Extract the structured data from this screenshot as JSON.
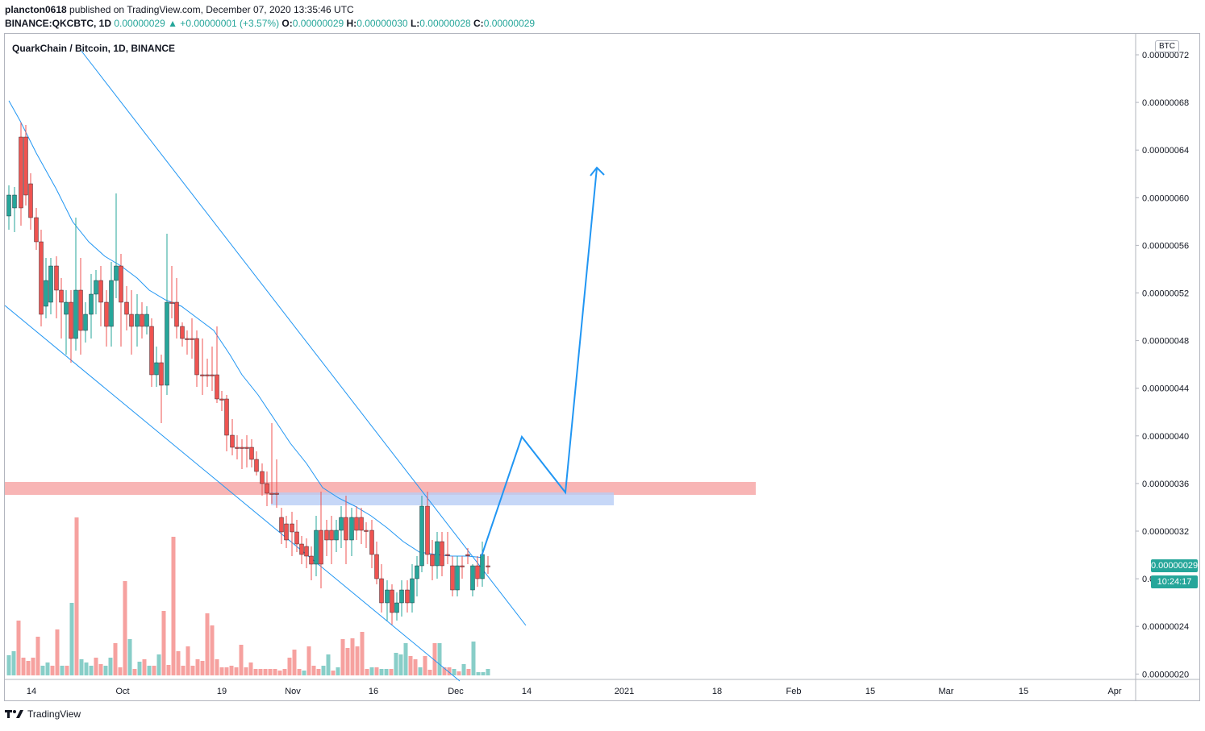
{
  "header": {
    "publisher": "plancton0618",
    "published_text": " published on TradingView.com, December 07, 2020 13:35:46 UTC",
    "symbol": "BINANCE:QKCBTC, 1D",
    "last": "0.00000029",
    "change": "▲ +0.00000001 (+3.57%)",
    "o_label": "O:",
    "o_val": "0.00000029",
    "h_label": "H:",
    "h_val": "0.00000030",
    "l_label": "L:",
    "l_val": "0.00000028",
    "c_label": "C:",
    "c_val": "0.00000029"
  },
  "chart": {
    "title": "QuarkChain / Bitcoin, 1D, BINANCE",
    "currency_button": "BTC",
    "current_price_tag": "0.00000029",
    "countdown_tag": "10:24:17",
    "price_axis_labels": [
      "0.00000072",
      "0.00000068",
      "0.00000064",
      "0.00000060",
      "0.00000056",
      "0.00000052",
      "0.00000048",
      "0.00000044",
      "0.00000040",
      "0.00000036",
      "0.00000032",
      "0.00000028",
      "0.00000024",
      "0.00000020"
    ],
    "time_axis_labels": [
      "14",
      "Oct",
      "19",
      "Nov",
      "16",
      "Dec",
      "14",
      "2021",
      "18",
      "Feb",
      "15",
      "Mar",
      "15",
      "Apr"
    ],
    "colors": {
      "up": "#26a69a",
      "down": "#ef5350",
      "drawing": "#2196f3",
      "resistance": "#f7a8a8",
      "support": "#b8cdf5"
    }
  },
  "footer": {
    "brand": "TradingView"
  }
}
